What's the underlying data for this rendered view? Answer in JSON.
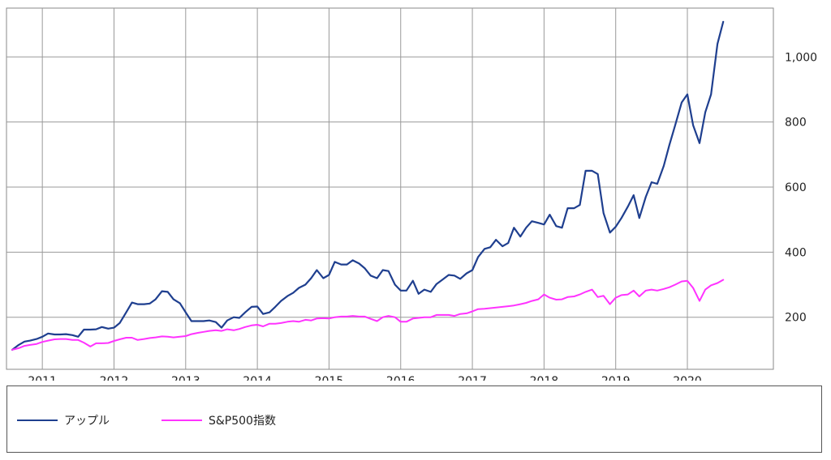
{
  "chart_data": {
    "type": "line",
    "title": "",
    "xlabel": "",
    "ylabel": "",
    "x_axis": {
      "start": 2010.5,
      "end": 2021.2,
      "ticks": [
        2011,
        2012,
        2013,
        2014,
        2015,
        2016,
        2017,
        2018,
        2019,
        2020
      ],
      "tick_labels": [
        "2011",
        "2012",
        "2013",
        "2014",
        "2015",
        "2016",
        "2017",
        "2018",
        "2019",
        "2020"
      ]
    },
    "y_axis": {
      "ylim": [
        40,
        1150
      ],
      "ticks": [
        200,
        400,
        600,
        800,
        1000
      ],
      "tick_labels": [
        "200",
        "400",
        "600",
        "800",
        "1,000"
      ],
      "position": "right"
    },
    "grid": true,
    "legend_position": "bottom",
    "series": [
      {
        "name": "アップル",
        "color": "#1f3f8f",
        "points": [
          [
            2010.58,
            100
          ],
          [
            2010.67,
            115
          ],
          [
            2010.75,
            125
          ],
          [
            2010.83,
            128
          ],
          [
            2010.92,
            133
          ],
          [
            2011.0,
            140
          ],
          [
            2011.08,
            150
          ],
          [
            2011.17,
            147
          ],
          [
            2011.25,
            147
          ],
          [
            2011.33,
            148
          ],
          [
            2011.42,
            145
          ],
          [
            2011.5,
            140
          ],
          [
            2011.58,
            162
          ],
          [
            2011.67,
            162
          ],
          [
            2011.75,
            163
          ],
          [
            2011.83,
            170
          ],
          [
            2011.92,
            165
          ],
          [
            2012.0,
            168
          ],
          [
            2012.08,
            182
          ],
          [
            2012.17,
            215
          ],
          [
            2012.25,
            245
          ],
          [
            2012.33,
            240
          ],
          [
            2012.42,
            240
          ],
          [
            2012.5,
            242
          ],
          [
            2012.58,
            255
          ],
          [
            2012.67,
            280
          ],
          [
            2012.75,
            278
          ],
          [
            2012.83,
            255
          ],
          [
            2012.92,
            243
          ],
          [
            2013.0,
            215
          ],
          [
            2013.08,
            188
          ],
          [
            2013.17,
            188
          ],
          [
            2013.25,
            188
          ],
          [
            2013.33,
            190
          ],
          [
            2013.42,
            185
          ],
          [
            2013.5,
            168
          ],
          [
            2013.58,
            190
          ],
          [
            2013.67,
            200
          ],
          [
            2013.75,
            198
          ],
          [
            2013.83,
            215
          ],
          [
            2013.92,
            232
          ],
          [
            2014.0,
            233
          ],
          [
            2014.08,
            210
          ],
          [
            2014.17,
            215
          ],
          [
            2014.25,
            232
          ],
          [
            2014.33,
            250
          ],
          [
            2014.42,
            265
          ],
          [
            2014.5,
            275
          ],
          [
            2014.58,
            290
          ],
          [
            2014.67,
            300
          ],
          [
            2014.75,
            320
          ],
          [
            2014.83,
            345
          ],
          [
            2014.92,
            320
          ],
          [
            2015.0,
            330
          ],
          [
            2015.08,
            370
          ],
          [
            2015.17,
            362
          ],
          [
            2015.25,
            362
          ],
          [
            2015.33,
            375
          ],
          [
            2015.42,
            365
          ],
          [
            2015.5,
            350
          ],
          [
            2015.58,
            328
          ],
          [
            2015.67,
            320
          ],
          [
            2015.75,
            345
          ],
          [
            2015.83,
            342
          ],
          [
            2015.92,
            300
          ],
          [
            2016.0,
            282
          ],
          [
            2016.08,
            282
          ],
          [
            2016.17,
            312
          ],
          [
            2016.25,
            272
          ],
          [
            2016.33,
            285
          ],
          [
            2016.42,
            278
          ],
          [
            2016.5,
            302
          ],
          [
            2016.58,
            315
          ],
          [
            2016.67,
            330
          ],
          [
            2016.75,
            328
          ],
          [
            2016.83,
            318
          ],
          [
            2016.92,
            335
          ],
          [
            2017.0,
            345
          ],
          [
            2017.08,
            385
          ],
          [
            2017.17,
            410
          ],
          [
            2017.25,
            415
          ],
          [
            2017.33,
            438
          ],
          [
            2017.42,
            418
          ],
          [
            2017.5,
            428
          ],
          [
            2017.58,
            475
          ],
          [
            2017.67,
            448
          ],
          [
            2017.75,
            475
          ],
          [
            2017.83,
            495
          ],
          [
            2017.92,
            490
          ],
          [
            2018.0,
            485
          ],
          [
            2018.08,
            515
          ],
          [
            2018.17,
            480
          ],
          [
            2018.25,
            475
          ],
          [
            2018.33,
            535
          ],
          [
            2018.42,
            535
          ],
          [
            2018.5,
            545
          ],
          [
            2018.58,
            650
          ],
          [
            2018.67,
            650
          ],
          [
            2018.75,
            640
          ],
          [
            2018.83,
            520
          ],
          [
            2018.92,
            460
          ],
          [
            2019.0,
            478
          ],
          [
            2019.08,
            505
          ],
          [
            2019.17,
            540
          ],
          [
            2019.25,
            575
          ],
          [
            2019.33,
            505
          ],
          [
            2019.42,
            570
          ],
          [
            2019.5,
            615
          ],
          [
            2019.58,
            610
          ],
          [
            2019.67,
            665
          ],
          [
            2019.75,
            730
          ],
          [
            2019.83,
            790
          ],
          [
            2019.92,
            860
          ],
          [
            2020.0,
            885
          ],
          [
            2020.08,
            790
          ],
          [
            2020.17,
            735
          ],
          [
            2020.25,
            830
          ],
          [
            2020.33,
            885
          ],
          [
            2020.42,
            1040
          ],
          [
            2020.5,
            1108
          ]
        ]
      },
      {
        "name": "S&P500指数",
        "color": "#ff33ff",
        "points": [
          [
            2010.58,
            100
          ],
          [
            2010.67,
            105
          ],
          [
            2010.75,
            112
          ],
          [
            2010.83,
            115
          ],
          [
            2010.92,
            118
          ],
          [
            2011.0,
            124
          ],
          [
            2011.08,
            128
          ],
          [
            2011.17,
            132
          ],
          [
            2011.25,
            133
          ],
          [
            2011.33,
            133
          ],
          [
            2011.42,
            130
          ],
          [
            2011.5,
            130
          ],
          [
            2011.58,
            122
          ],
          [
            2011.67,
            110
          ],
          [
            2011.75,
            120
          ],
          [
            2011.83,
            120
          ],
          [
            2011.92,
            121
          ],
          [
            2012.0,
            127
          ],
          [
            2012.08,
            132
          ],
          [
            2012.17,
            137
          ],
          [
            2012.25,
            137
          ],
          [
            2012.33,
            130
          ],
          [
            2012.42,
            133
          ],
          [
            2012.5,
            136
          ],
          [
            2012.58,
            138
          ],
          [
            2012.67,
            141
          ],
          [
            2012.75,
            140
          ],
          [
            2012.83,
            138
          ],
          [
            2012.92,
            140
          ],
          [
            2013.0,
            142
          ],
          [
            2013.08,
            148
          ],
          [
            2013.17,
            152
          ],
          [
            2013.25,
            155
          ],
          [
            2013.33,
            158
          ],
          [
            2013.42,
            160
          ],
          [
            2013.5,
            158
          ],
          [
            2013.58,
            163
          ],
          [
            2013.67,
            160
          ],
          [
            2013.75,
            164
          ],
          [
            2013.83,
            170
          ],
          [
            2013.92,
            175
          ],
          [
            2014.0,
            177
          ],
          [
            2014.08,
            172
          ],
          [
            2014.17,
            180
          ],
          [
            2014.25,
            180
          ],
          [
            2014.33,
            182
          ],
          [
            2014.42,
            186
          ],
          [
            2014.5,
            188
          ],
          [
            2014.58,
            186
          ],
          [
            2014.67,
            192
          ],
          [
            2014.75,
            190
          ],
          [
            2014.83,
            196
          ],
          [
            2014.92,
            197
          ],
          [
            2015.0,
            196
          ],
          [
            2015.08,
            200
          ],
          [
            2015.17,
            202
          ],
          [
            2015.25,
            202
          ],
          [
            2015.33,
            204
          ],
          [
            2015.42,
            202
          ],
          [
            2015.5,
            202
          ],
          [
            2015.58,
            195
          ],
          [
            2015.67,
            188
          ],
          [
            2015.75,
            200
          ],
          [
            2015.83,
            204
          ],
          [
            2015.92,
            200
          ],
          [
            2016.0,
            186
          ],
          [
            2016.08,
            186
          ],
          [
            2016.17,
            196
          ],
          [
            2016.25,
            198
          ],
          [
            2016.33,
            200
          ],
          [
            2016.42,
            200
          ],
          [
            2016.5,
            207
          ],
          [
            2016.58,
            207
          ],
          [
            2016.67,
            207
          ],
          [
            2016.75,
            204
          ],
          [
            2016.83,
            210
          ],
          [
            2016.92,
            212
          ],
          [
            2017.0,
            218
          ],
          [
            2017.08,
            225
          ],
          [
            2017.17,
            226
          ],
          [
            2017.25,
            228
          ],
          [
            2017.33,
            230
          ],
          [
            2017.42,
            232
          ],
          [
            2017.5,
            234
          ],
          [
            2017.58,
            236
          ],
          [
            2017.67,
            240
          ],
          [
            2017.75,
            244
          ],
          [
            2017.83,
            250
          ],
          [
            2017.92,
            255
          ],
          [
            2018.0,
            270
          ],
          [
            2018.08,
            260
          ],
          [
            2018.17,
            254
          ],
          [
            2018.25,
            255
          ],
          [
            2018.33,
            262
          ],
          [
            2018.42,
            264
          ],
          [
            2018.5,
            270
          ],
          [
            2018.58,
            278
          ],
          [
            2018.67,
            285
          ],
          [
            2018.75,
            262
          ],
          [
            2018.83,
            266
          ],
          [
            2018.92,
            240
          ],
          [
            2019.0,
            260
          ],
          [
            2019.08,
            268
          ],
          [
            2019.17,
            270
          ],
          [
            2019.25,
            282
          ],
          [
            2019.33,
            264
          ],
          [
            2019.42,
            282
          ],
          [
            2019.5,
            285
          ],
          [
            2019.58,
            282
          ],
          [
            2019.67,
            287
          ],
          [
            2019.75,
            292
          ],
          [
            2019.83,
            300
          ],
          [
            2019.92,
            310
          ],
          [
            2020.0,
            312
          ],
          [
            2020.08,
            290
          ],
          [
            2020.17,
            250
          ],
          [
            2020.25,
            285
          ],
          [
            2020.33,
            298
          ],
          [
            2020.42,
            305
          ],
          [
            2020.5,
            315
          ]
        ]
      }
    ]
  }
}
